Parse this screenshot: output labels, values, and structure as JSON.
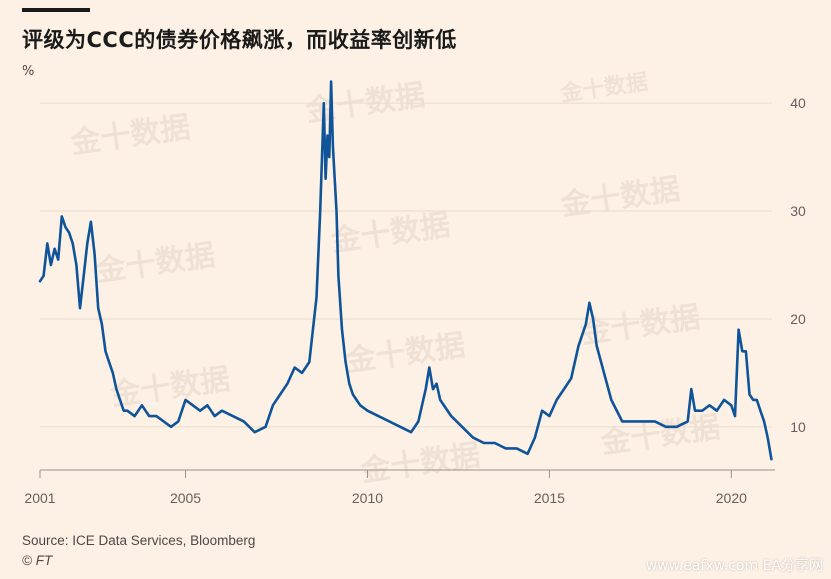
{
  "title": "评级为CCC的债券价格飙涨，而收益率创新低",
  "unit": "%",
  "source": "Source: ICE Data Services, Bloomberg",
  "credit": "© FT",
  "watermark": "金十数据",
  "footer_watermark": "www.eafxw.com  EA分享网",
  "colors": {
    "background": "#fdf1e6",
    "line": "#0f5499",
    "grid": "#e8dcd0"
  },
  "chart_data": {
    "type": "line",
    "title": "评级为CCC的债券价格飙涨，而收益率创新低",
    "ylabel": "%",
    "xlim": [
      2001.0,
      2021.2
    ],
    "ylim": [
      6,
      44
    ],
    "x_ticks": [
      2001,
      2005,
      2010,
      2015,
      2020
    ],
    "x_tick_labels": [
      "2001",
      "2005",
      "2010",
      "2015",
      "2020"
    ],
    "y_ticks": [
      10,
      20,
      30,
      40
    ],
    "y_tick_labels": [
      "10",
      "20",
      "30",
      "40"
    ],
    "grid": true,
    "series": [
      {
        "x": [
          2001.0,
          2001.1,
          2001.2,
          2001.3,
          2001.4,
          2001.5,
          2001.6,
          2001.7,
          2001.8,
          2001.9,
          2002.0,
          2002.1,
          2002.2,
          2002.3,
          2002.4,
          2002.5,
          2002.6,
          2002.7,
          2002.8,
          2002.9,
          2003.0,
          2003.1,
          2003.2,
          2003.3,
          2003.4,
          2003.6,
          2003.8,
          2004.0,
          2004.2,
          2004.4,
          2004.6,
          2004.8,
          2005.0,
          2005.2,
          2005.4,
          2005.6,
          2005.8,
          2006.0,
          2006.3,
          2006.6,
          2006.9,
          2007.2,
          2007.4,
          2007.6,
          2007.8,
          2008.0,
          2008.2,
          2008.4,
          2008.6,
          2008.7,
          2008.8,
          2008.85,
          2008.9,
          2008.95,
          2009.0,
          2009.05,
          2009.1,
          2009.15,
          2009.2,
          2009.3,
          2009.4,
          2009.5,
          2009.6,
          2009.8,
          2010.0,
          2010.3,
          2010.6,
          2010.9,
          2011.2,
          2011.4,
          2011.6,
          2011.7,
          2011.8,
          2011.9,
          2012.0,
          2012.3,
          2012.6,
          2012.9,
          2013.2,
          2013.5,
          2013.8,
          2014.1,
          2014.4,
          2014.6,
          2014.8,
          2015.0,
          2015.2,
          2015.4,
          2015.6,
          2015.8,
          2016.0,
          2016.1,
          2016.2,
          2016.3,
          2016.5,
          2016.7,
          2017.0,
          2017.3,
          2017.6,
          2017.9,
          2018.2,
          2018.5,
          2018.8,
          2018.9,
          2019.0,
          2019.2,
          2019.4,
          2019.6,
          2019.8,
          2020.0,
          2020.1,
          2020.2,
          2020.3,
          2020.4,
          2020.5,
          2020.6,
          2020.7,
          2020.8,
          2020.9,
          2021.0,
          2021.1
        ],
        "y": [
          23.5,
          24.0,
          27.0,
          25.0,
          26.5,
          25.5,
          29.5,
          28.5,
          28.0,
          27.0,
          25.0,
          21.0,
          24.0,
          27.0,
          29.0,
          26.0,
          21.0,
          19.5,
          17.0,
          16.0,
          15.0,
          13.5,
          12.5,
          11.5,
          11.5,
          11.0,
          12.0,
          11.0,
          11.0,
          10.5,
          10.0,
          10.5,
          12.5,
          12.0,
          11.5,
          12.0,
          11.0,
          11.5,
          11.0,
          10.5,
          9.5,
          10.0,
          12.0,
          13.0,
          14.0,
          15.5,
          15.0,
          16.0,
          22.0,
          30.0,
          40.0,
          33.0,
          37.0,
          35.0,
          42.0,
          36.0,
          33.0,
          30.0,
          24.0,
          19.0,
          16.0,
          14.0,
          13.0,
          12.0,
          11.5,
          11.0,
          10.5,
          10.0,
          9.5,
          10.5,
          13.5,
          15.5,
          13.5,
          14.0,
          12.5,
          11.0,
          10.0,
          9.0,
          8.5,
          8.5,
          8.0,
          8.0,
          7.5,
          9.0,
          11.5,
          11.0,
          12.5,
          13.5,
          14.5,
          17.5,
          19.5,
          21.5,
          20.0,
          17.5,
          15.0,
          12.5,
          10.5,
          10.5,
          10.5,
          10.5,
          10.0,
          10.0,
          10.5,
          13.5,
          11.5,
          11.5,
          12.0,
          11.5,
          12.5,
          12.0,
          11.0,
          19.0,
          17.0,
          17.0,
          13.0,
          12.5,
          12.5,
          11.5,
          10.5,
          9.0,
          7.0
        ]
      }
    ]
  }
}
